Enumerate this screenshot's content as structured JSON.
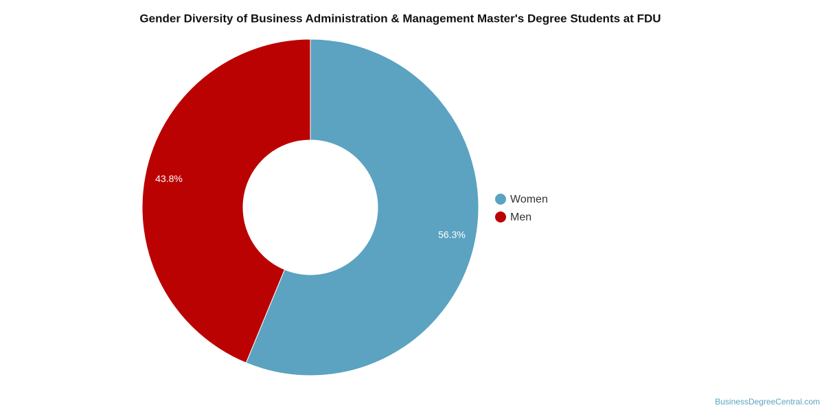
{
  "chart_data": {
    "type": "donut",
    "title": "Gender Diversity of Business Administration & Management Master's Degree Students at FDU",
    "categories": [
      "Women",
      "Men"
    ],
    "values": [
      56.3,
      43.8
    ],
    "value_labels": [
      "56.3%",
      "43.8%"
    ],
    "colors": [
      "#5ba3c0",
      "#bb0202"
    ],
    "legend": "right",
    "credit": "BusinessDegreeCentral.com"
  }
}
